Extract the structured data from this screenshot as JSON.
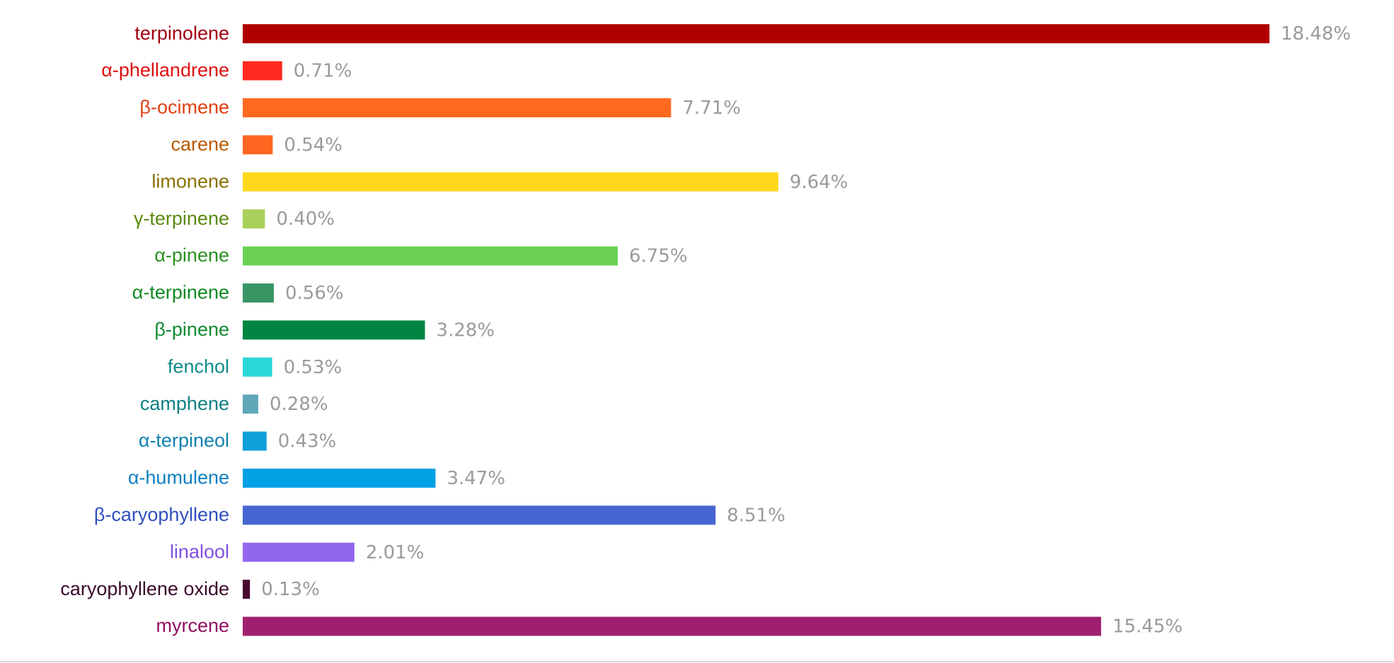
{
  "chart_data": {
    "type": "hbar",
    "categories": [
      "terpinolene",
      "α-phellandrene",
      "β-ocimene",
      "carene",
      "limonene",
      "γ-terpinene",
      "α-pinene",
      "α-terpinene",
      "β-pinene",
      "fenchol",
      "camphene",
      "α-terpineol",
      "α-humulene",
      "β-caryophyllene",
      "linalool",
      "caryophyllene oxide",
      "myrcene"
    ],
    "values": [
      18.48,
      0.71,
      7.71,
      0.54,
      9.64,
      0.4,
      6.75,
      0.56,
      3.28,
      0.53,
      0.28,
      0.43,
      3.47,
      8.51,
      2.01,
      0.13,
      15.45
    ],
    "value_labels": [
      "18.48%",
      "0.71%",
      "7.71%",
      "0.54%",
      "9.64%",
      "0.40%",
      "6.75%",
      "0.56%",
      "3.28%",
      "0.53%",
      "0.28%",
      "0.43%",
      "3.47%",
      "8.51%",
      "2.01%",
      "0.13%",
      "15.45%"
    ],
    "colors": [
      "#b00000",
      "#ff2a1f",
      "#ff6a1f",
      "#ff6620",
      "#fdd81d",
      "#a8d05a",
      "#6ad155",
      "#3a9565",
      "#008542",
      "#2ad8d8",
      "#60a8b8",
      "#0ea0d8",
      "#00a0e4",
      "#4665d0",
      "#9366f0",
      "#4a0a30",
      "#a02070"
    ],
    "label_colors": [
      "#a00010",
      "#e01010",
      "#e04010",
      "#b85a00",
      "#8a7000",
      "#5a8a10",
      "#2a9020",
      "#108a20",
      "#108a30",
      "#108a8a",
      "#108080",
      "#1080b0",
      "#1080c0",
      "#3050c0",
      "#8050e0",
      "#3a0a2a",
      "#901060"
    ],
    "value_label_color": "#9a9a9a"
  }
}
